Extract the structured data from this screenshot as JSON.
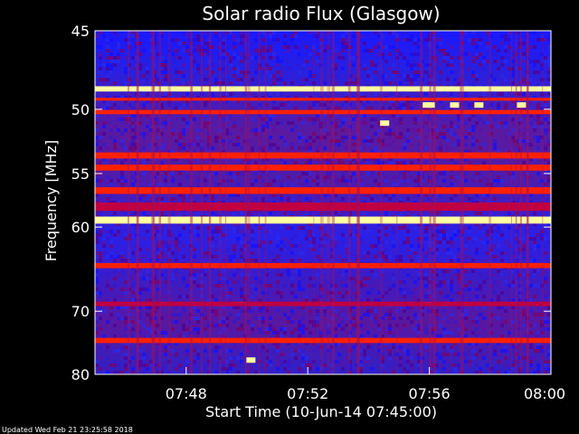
{
  "chart_data": {
    "type": "heatmap",
    "title": "Solar radio Flux (Glasgow)",
    "ylabel": "Frequency [MHz]",
    "xlabel": "Start Time (10-Jun-14 07:45:00)",
    "footer": "Updated Wed Feb 21 23:25:58 2018",
    "y_axis": {
      "scale": "reciprocal",
      "direction": "down",
      "range_mhz": [
        45,
        80
      ],
      "ticks": [
        45,
        50,
        55,
        60,
        70,
        80
      ]
    },
    "x_axis": {
      "range_minutes_after_0700": [
        45,
        60
      ],
      "ticks": [
        {
          "label": "07:48",
          "minute": 48
        },
        {
          "label": "07:52",
          "minute": 52
        },
        {
          "label": "07:56",
          "minute": 56
        },
        {
          "label": "08:00",
          "minute": 60
        }
      ]
    },
    "grid": false,
    "colors": {
      "background": "#000000",
      "low": "#1010ff",
      "mid": "#c00040",
      "high": "#ff2000",
      "peak": "#ffffa0"
    },
    "bands_mhz": [
      {
        "center": 48.6,
        "width": 0.35,
        "level": "peak"
      },
      {
        "center": 49.3,
        "width": 0.2,
        "level": "high"
      },
      {
        "center": 50.2,
        "width": 0.3,
        "level": "high"
      },
      {
        "center": 53.5,
        "width": 0.5,
        "level": "high"
      },
      {
        "center": 54.5,
        "width": 0.5,
        "level": "high"
      },
      {
        "center": 56.5,
        "width": 0.6,
        "level": "high"
      },
      {
        "center": 58.0,
        "width": 0.8,
        "level": "mid"
      },
      {
        "center": 59.3,
        "width": 0.7,
        "level": "peak"
      },
      {
        "center": 64.2,
        "width": 0.6,
        "level": "high"
      },
      {
        "center": 69.0,
        "width": 0.6,
        "level": "mid"
      },
      {
        "center": 74.3,
        "width": 0.8,
        "level": "high"
      }
    ],
    "bursts": [
      {
        "minute": 55.9,
        "mhz": 49.7,
        "level": "peak"
      },
      {
        "minute": 56.0,
        "mhz": 49.7,
        "level": "peak"
      },
      {
        "minute": 56.8,
        "mhz": 49.7,
        "level": "peak"
      },
      {
        "minute": 57.6,
        "mhz": 49.7,
        "level": "peak"
      },
      {
        "minute": 59.0,
        "mhz": 49.7,
        "level": "peak"
      },
      {
        "minute": 54.5,
        "mhz": 51.0,
        "level": "peak"
      },
      {
        "minute": 50.1,
        "mhz": 77.5,
        "level": "peak"
      }
    ]
  }
}
